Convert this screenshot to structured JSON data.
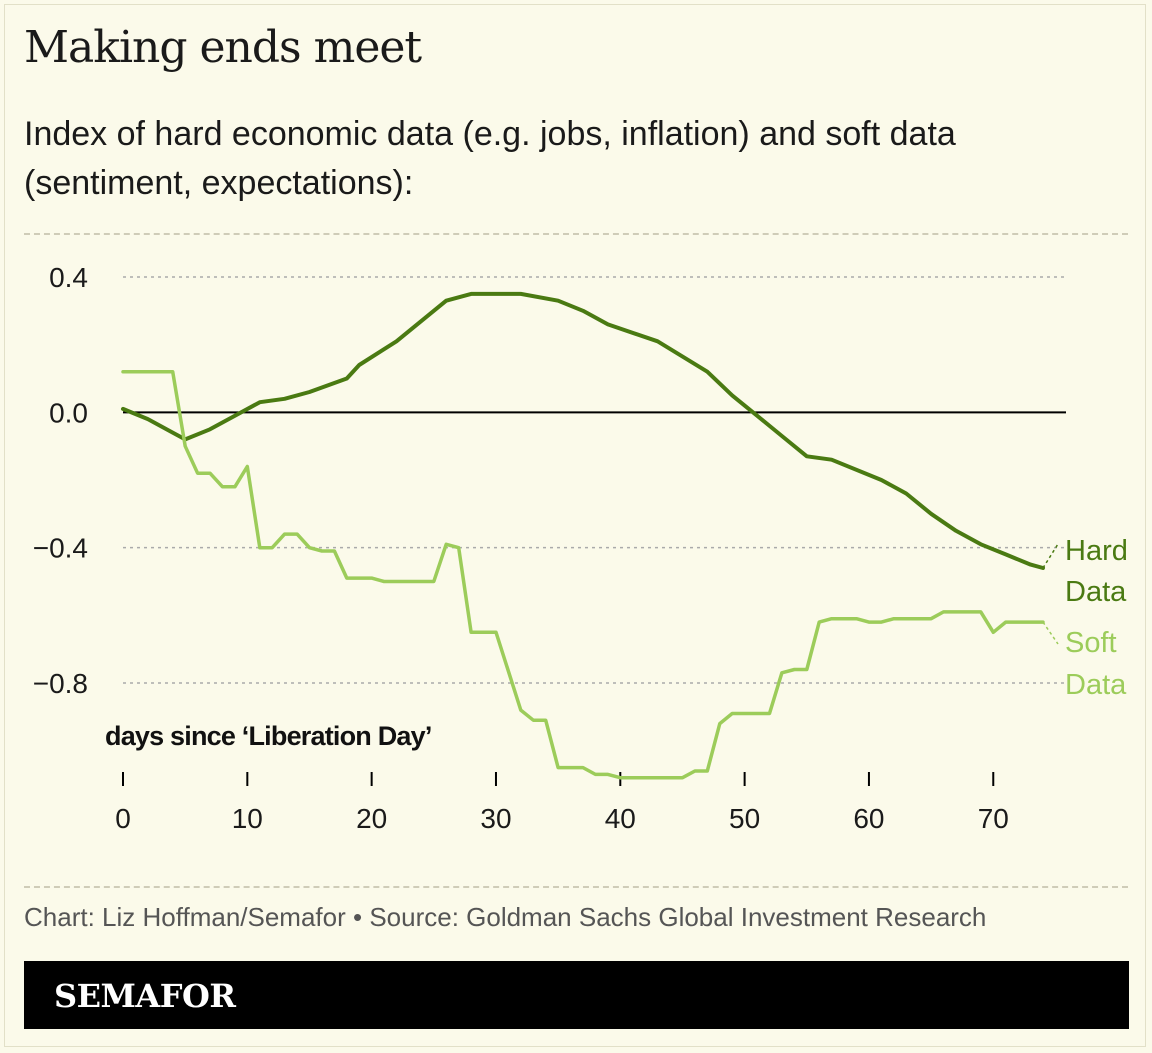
{
  "header": {
    "title": "Making ends meet",
    "subtitle": "Index of hard economic data (e.g. jobs, inflation) and soft data (sentiment, expectations):"
  },
  "footer": {
    "credit": "Chart: Liz Hoffman/Semafor • Source: Goldman Sachs Global Investment Research",
    "logo": "SEMAFOR"
  },
  "colors": {
    "hard": "#4a7a12",
    "soft": "#9ccc5a",
    "zero_line": "#000000",
    "grid": "#aaaaaa"
  },
  "chart_data": {
    "type": "line",
    "title": "Making ends meet",
    "xlabel": "days since ‘Liberation Day’",
    "ylabel": "",
    "xlim": [
      0,
      74
    ],
    "ylim": [
      -1.1,
      0.4
    ],
    "x_ticks": [
      0,
      10,
      20,
      30,
      40,
      50,
      60,
      70
    ],
    "x_tick_labels": [
      "0",
      "10",
      "20",
      "30",
      "40",
      "50",
      "60",
      "70"
    ],
    "y_ticks": [
      0.4,
      0.0,
      -0.4,
      -0.8
    ],
    "y_tick_labels": [
      "0.4",
      "0.0",
      "−0.4",
      "−0.8"
    ],
    "grid": "horizontal dotted",
    "legend": "direct labels at right end of lines",
    "series": [
      {
        "name": "Hard Data",
        "label_lines": [
          "Hard",
          "Data"
        ],
        "points": [
          [
            0,
            0.01
          ],
          [
            2,
            -0.02
          ],
          [
            4,
            -0.06
          ],
          [
            5,
            -0.08
          ],
          [
            7,
            -0.05
          ],
          [
            9,
            -0.01
          ],
          [
            11,
            0.03
          ],
          [
            13,
            0.04
          ],
          [
            15,
            0.06
          ],
          [
            18,
            0.1
          ],
          [
            19,
            0.14
          ],
          [
            22,
            0.21
          ],
          [
            25,
            0.3
          ],
          [
            26,
            0.33
          ],
          [
            28,
            0.35
          ],
          [
            32,
            0.35
          ],
          [
            35,
            0.33
          ],
          [
            37,
            0.3
          ],
          [
            39,
            0.26
          ],
          [
            43,
            0.21
          ],
          [
            47,
            0.12
          ],
          [
            49,
            0.05
          ],
          [
            51,
            -0.01
          ],
          [
            53,
            -0.07
          ],
          [
            55,
            -0.13
          ],
          [
            57,
            -0.14
          ],
          [
            61,
            -0.2
          ],
          [
            63,
            -0.24
          ],
          [
            65,
            -0.3
          ],
          [
            67,
            -0.35
          ],
          [
            69,
            -0.39
          ],
          [
            71,
            -0.42
          ],
          [
            73,
            -0.45
          ],
          [
            74,
            -0.46
          ]
        ]
      },
      {
        "name": "Soft Data",
        "label_lines": [
          "Soft",
          "Data"
        ],
        "points": [
          [
            0,
            0.12
          ],
          [
            4,
            0.12
          ],
          [
            5,
            -0.1
          ],
          [
            6,
            -0.18
          ],
          [
            7,
            -0.18
          ],
          [
            8,
            -0.22
          ],
          [
            9,
            -0.22
          ],
          [
            10,
            -0.16
          ],
          [
            11,
            -0.4
          ],
          [
            12,
            -0.4
          ],
          [
            13,
            -0.36
          ],
          [
            14,
            -0.36
          ],
          [
            15,
            -0.4
          ],
          [
            16,
            -0.41
          ],
          [
            17,
            -0.41
          ],
          [
            18,
            -0.49
          ],
          [
            20,
            -0.49
          ],
          [
            21,
            -0.5
          ],
          [
            25,
            -0.5
          ],
          [
            26,
            -0.39
          ],
          [
            27,
            -0.4
          ],
          [
            28,
            -0.65
          ],
          [
            30,
            -0.65
          ],
          [
            32,
            -0.88
          ],
          [
            33,
            -0.91
          ],
          [
            34,
            -0.91
          ],
          [
            35,
            -1.05
          ],
          [
            37,
            -1.05
          ],
          [
            38,
            -1.07
          ],
          [
            39,
            -1.07
          ],
          [
            40,
            -1.08
          ],
          [
            45,
            -1.08
          ],
          [
            46,
            -1.06
          ],
          [
            47,
            -1.06
          ],
          [
            48,
            -0.92
          ],
          [
            49,
            -0.89
          ],
          [
            52,
            -0.89
          ],
          [
            53,
            -0.77
          ],
          [
            54,
            -0.76
          ],
          [
            55,
            -0.76
          ],
          [
            56,
            -0.62
          ],
          [
            57,
            -0.61
          ],
          [
            59,
            -0.61
          ],
          [
            60,
            -0.62
          ],
          [
            61,
            -0.62
          ],
          [
            62,
            -0.61
          ],
          [
            65,
            -0.61
          ],
          [
            66,
            -0.59
          ],
          [
            69,
            -0.59
          ],
          [
            70,
            -0.65
          ],
          [
            71,
            -0.62
          ],
          [
            74,
            -0.62
          ]
        ]
      }
    ]
  }
}
